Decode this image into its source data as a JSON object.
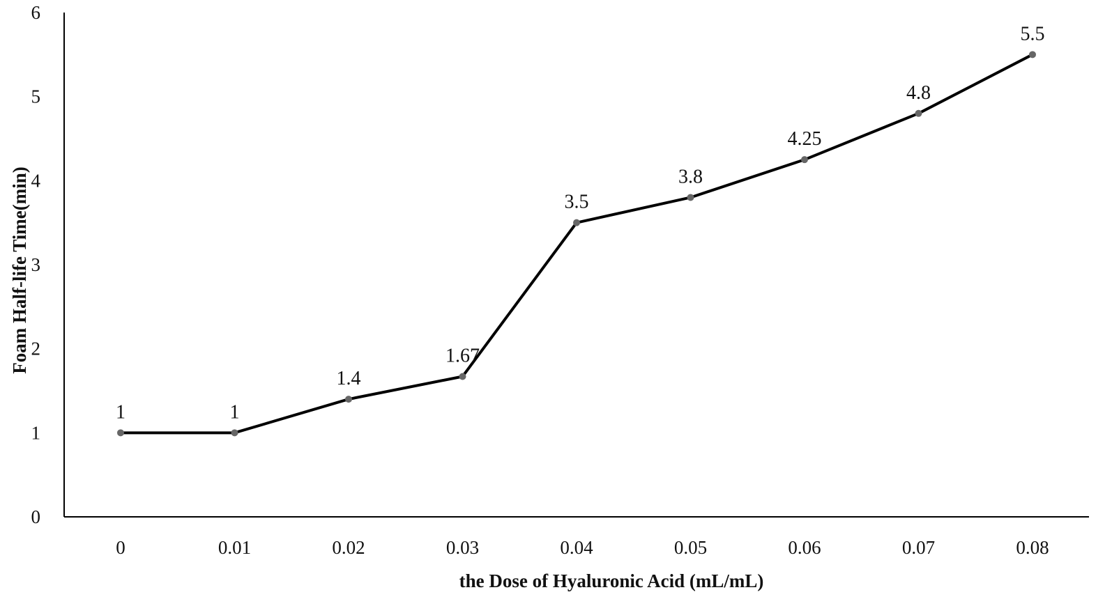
{
  "chart_data": {
    "type": "line",
    "title": "",
    "xlabel": "the Dose of Hyaluronic Acid (mL/mL)",
    "ylabel": "Foam Half-life Time(min)",
    "categories": [
      "0",
      "0.01",
      "0.02",
      "0.03",
      "0.04",
      "0.05",
      "0.06",
      "0.07",
      "0.08"
    ],
    "y_ticks": [
      "0",
      "1",
      "2",
      "3",
      "4",
      "5",
      "6"
    ],
    "ylim": [
      0,
      6
    ],
    "grid": false,
    "legend": "none",
    "series": [
      {
        "values": [
          1,
          1,
          1.4,
          1.67,
          3.5,
          3.8,
          4.25,
          4.8,
          5.5
        ],
        "data_labels": [
          "1",
          "1",
          "1.4",
          "1.67",
          "3.5",
          "3.8",
          "4.25",
          "4.8",
          "5.5"
        ]
      }
    ],
    "colors": {
      "line": "#000000",
      "marker": "#666666",
      "axis": "#000000",
      "text": "#111111"
    }
  }
}
